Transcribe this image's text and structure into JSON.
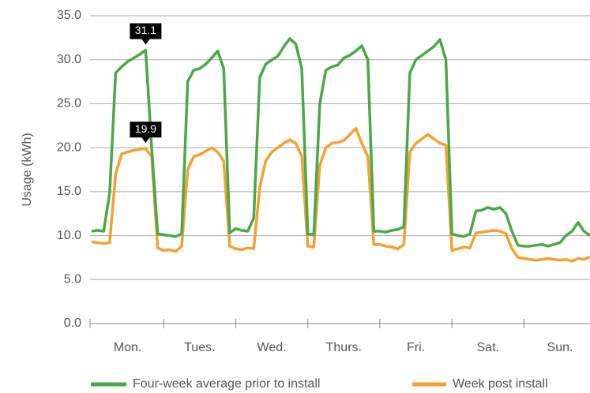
{
  "chart_data": {
    "type": "line",
    "ylabel": "Usage (kWh)",
    "categories": [
      "Mon.",
      "Tues.",
      "Wed.",
      "Thurs.",
      "Fri.",
      "Sat.",
      "Sun."
    ],
    "x": [
      0,
      2,
      4,
      6,
      8,
      10,
      12,
      14,
      16,
      18,
      20,
      22,
      24,
      26,
      28,
      30,
      32,
      34,
      36,
      38,
      40,
      42,
      44,
      46,
      48,
      50,
      52,
      54,
      56,
      58,
      60,
      62,
      64,
      66,
      68,
      70,
      72,
      74,
      76,
      78,
      80,
      82,
      84,
      86,
      88,
      90,
      92,
      94,
      96,
      98,
      100,
      102,
      104,
      106,
      108,
      110,
      112,
      114,
      116,
      118,
      120,
      122,
      124,
      126,
      128,
      130,
      132,
      134,
      136,
      138,
      140,
      142,
      144,
      146,
      148,
      150,
      152,
      154,
      156,
      158,
      160,
      162,
      164,
      166
    ],
    "xlim": [
      0,
      166
    ],
    "xticks": [
      24,
      48,
      72,
      96,
      120,
      144
    ],
    "ylim": [
      0,
      35
    ],
    "yticks": [
      {
        "value": 0,
        "label": "0.0"
      },
      {
        "value": 5,
        "label": "5.0"
      },
      {
        "value": 10,
        "label": "10.0"
      },
      {
        "value": 15,
        "label": "15.0"
      },
      {
        "value": 20,
        "label": "20.0"
      },
      {
        "value": 25,
        "label": "25.0"
      },
      {
        "value": 30,
        "label": "30.0"
      },
      {
        "value": 35,
        "label": "35.0"
      }
    ],
    "grid": true,
    "series": [
      {
        "name": "Four-week average prior to install",
        "color": "#4aa84a",
        "values": [
          10.5,
          10.6,
          10.5,
          14.8,
          28.5,
          29.2,
          29.8,
          30.2,
          30.6,
          31.1,
          20.0,
          10.2,
          10.1,
          10.0,
          9.9,
          10.2,
          27.5,
          28.8,
          29.0,
          29.5,
          30.2,
          31.0,
          29.0,
          10.3,
          10.8,
          10.6,
          10.5,
          12.0,
          28.0,
          29.5,
          30.0,
          30.4,
          31.5,
          32.4,
          31.8,
          29.0,
          10.2,
          10.1,
          25.0,
          28.8,
          29.2,
          29.4,
          30.2,
          30.5,
          31.0,
          31.6,
          30.0,
          10.5,
          10.5,
          10.4,
          10.6,
          10.7,
          11.0,
          28.5,
          30.0,
          30.5,
          31.0,
          31.5,
          32.3,
          30.0,
          10.2,
          10.0,
          9.9,
          10.2,
          12.8,
          12.9,
          13.2,
          13.0,
          13.2,
          12.5,
          10.5,
          8.9,
          8.8,
          8.8,
          8.9,
          9.0,
          8.8,
          9.0,
          9.2,
          10.0,
          10.5,
          11.5,
          10.5,
          10.0
        ]
      },
      {
        "name": "Week post install",
        "color": "#f5a033",
        "values": [
          9.3,
          9.2,
          9.1,
          9.2,
          17.0,
          19.3,
          19.5,
          19.7,
          19.8,
          19.9,
          19.0,
          8.6,
          8.3,
          8.4,
          8.2,
          8.8,
          17.5,
          19.0,
          19.2,
          19.6,
          20.0,
          19.5,
          18.5,
          8.8,
          8.5,
          8.4,
          8.6,
          8.5,
          15.5,
          18.5,
          19.5,
          20.0,
          20.5,
          20.9,
          20.5,
          19.0,
          8.8,
          8.7,
          18.0,
          20.0,
          20.5,
          20.6,
          20.8,
          21.5,
          22.2,
          20.5,
          19.0,
          9.0,
          9.0,
          8.8,
          8.7,
          8.5,
          9.0,
          19.5,
          20.5,
          21.0,
          21.5,
          21.0,
          20.5,
          20.3,
          8.3,
          8.5,
          8.7,
          8.6,
          10.3,
          10.4,
          10.5,
          10.6,
          10.5,
          10.2,
          8.5,
          7.5,
          7.4,
          7.3,
          7.2,
          7.3,
          7.4,
          7.3,
          7.2,
          7.3,
          7.1,
          7.4,
          7.3,
          7.6
        ]
      }
    ],
    "annotations": [
      {
        "x": 18,
        "value": 31.1,
        "label": "31.1"
      },
      {
        "x": 18,
        "value": 19.9,
        "label": "19.9"
      }
    ]
  }
}
